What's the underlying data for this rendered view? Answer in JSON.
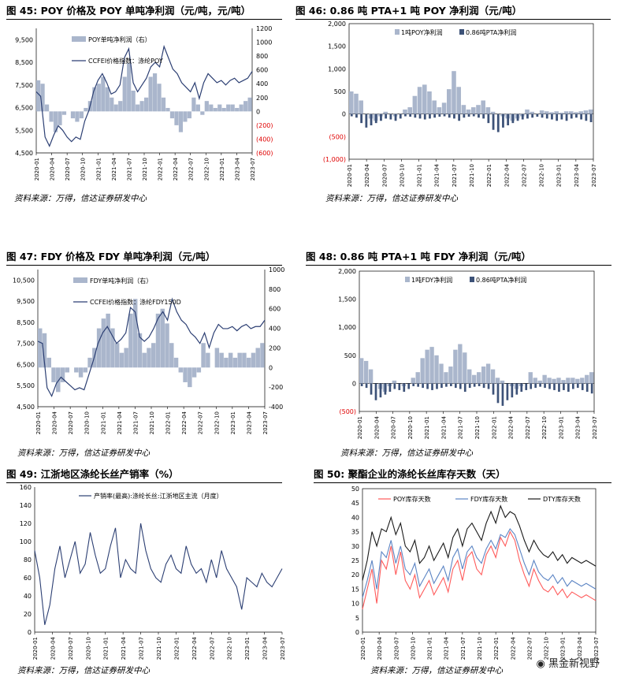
{
  "figures": [
    {
      "title": "图 45:  POY 价格及 POY 单吨净利润（元/吨，元/吨）",
      "source": "资料来源：万得，信达证券研发中心",
      "chart_data": {
        "type": "bar+line",
        "legend": [
          "POY单吨净利润（右）",
          "CCFEI价格指数：涤纶POY"
        ],
        "left_ticks": [
          "9,500",
          "8,500",
          "7,500",
          "6,500",
          "5,500",
          "4,500"
        ],
        "right_ticks": [
          "1200",
          "1000",
          "800",
          "600",
          "400",
          "200",
          "0",
          "(200)",
          "(400)",
          "(600)"
        ],
        "x_ticks": [
          "2020-01",
          "2020-04",
          "2020-07",
          "2020-10",
          "2021-01",
          "2021-04",
          "2021-07",
          "2021-10",
          "2022-01",
          "2022-04",
          "2022-07",
          "2022-10",
          "2023-01",
          "2023-04",
          "2023-07"
        ],
        "ylim_left": [
          4500,
          10000
        ],
        "ylim_right": [
          -600,
          1200
        ],
        "line_values": [
          7200,
          7000,
          5200,
          4800,
          5300,
          5700,
          5500,
          5200,
          5000,
          5200,
          5100,
          5900,
          6400,
          7200,
          7700,
          8000,
          7600,
          7100,
          7200,
          7500,
          8700,
          9100,
          7600,
          7200,
          7500,
          7800,
          8300,
          8500,
          8300,
          9200,
          8700,
          8200,
          8000,
          7600,
          7400,
          7200,
          7600,
          6900,
          7600,
          8000,
          7800,
          7600,
          7700,
          7500,
          7700,
          7800,
          7600,
          7700,
          7800,
          8100
        ],
        "bar_values": [
          450,
          400,
          100,
          -150,
          -300,
          -200,
          -50,
          0,
          -100,
          -150,
          -100,
          50,
          150,
          350,
          400,
          500,
          350,
          200,
          100,
          150,
          500,
          700,
          300,
          100,
          150,
          200,
          500,
          550,
          400,
          200,
          50,
          -100,
          -200,
          -300,
          -150,
          -100,
          200,
          100,
          -50,
          150,
          100,
          50,
          100,
          50,
          100,
          100,
          50,
          100,
          150,
          200
        ]
      }
    },
    {
      "title": "图 46:  0.86 吨 PTA+1 吨 POY 净利润（元/吨）",
      "source": "资料来源：万得，信达证券研发中心",
      "chart_data": {
        "type": "bar",
        "legend": [
          "1吨POY净利润",
          "0.86吨PTA净利润"
        ],
        "y_ticks": [
          "2,000",
          "1,500",
          "1,000",
          "500",
          "0",
          "(500)",
          "(1,000)"
        ],
        "ylim": [
          -1000,
          2000
        ],
        "x_ticks": [
          "2020-01",
          "2020-04",
          "2020-07",
          "2020-10",
          "2021-01",
          "2021-04",
          "2021-07",
          "2021-10",
          "2022-01",
          "2022-04",
          "2022-07",
          "2022-10",
          "2023-01",
          "2023-04",
          "2023-07"
        ],
        "series_1": [
          500,
          450,
          300,
          0,
          -100,
          -150,
          -50,
          50,
          0,
          -50,
          0,
          100,
          150,
          400,
          600,
          650,
          500,
          300,
          150,
          250,
          550,
          950,
          600,
          200,
          100,
          150,
          200,
          300,
          150,
          50,
          0,
          -50,
          -100,
          -150,
          -100,
          -50,
          100,
          50,
          0,
          80,
          60,
          40,
          60,
          30,
          60,
          60,
          40,
          60,
          80,
          100
        ],
        "series_2": [
          -50,
          -80,
          -200,
          -300,
          -250,
          -200,
          -150,
          -100,
          -120,
          -150,
          -100,
          -50,
          -60,
          -80,
          -100,
          -120,
          -100,
          -80,
          -60,
          -50,
          -80,
          -100,
          -150,
          -80,
          -60,
          -50,
          -80,
          -100,
          -200,
          -350,
          -400,
          -300,
          -250,
          -200,
          -150,
          -120,
          -100,
          -80,
          -60,
          -80,
          -100,
          -120,
          -150,
          -120,
          -150,
          -100,
          -80,
          -120,
          -150,
          -180
        ]
      }
    },
    {
      "title": "图 47:  FDY 价格及 FDY 单吨净利润（元/吨）",
      "source": "资料来源：万得，信达证券研发中心",
      "chart_data": {
        "type": "bar+line",
        "legend": [
          "FDY单吨净利润（右）",
          "CCFEI价格指数：涤纶FDY150D"
        ],
        "left_ticks": [
          "10,500",
          "9,500",
          "8,500",
          "7,500",
          "6,500",
          "5,500",
          "4,500"
        ],
        "right_ticks": [
          "1000",
          "800",
          "600",
          "400",
          "200",
          "0",
          "-200",
          "-400"
        ],
        "ylim_left": [
          4500,
          11000
        ],
        "ylim_right": [
          -400,
          1000
        ],
        "x_ticks": [
          "2020-01",
          "2020-04",
          "2020-07",
          "2020-10",
          "2021-01",
          "2021-04",
          "2021-07",
          "2021-10",
          "2022-01",
          "2022-04",
          "2022-07",
          "2022-10",
          "2023-01",
          "2023-04",
          "2023-07"
        ],
        "line_values": [
          7600,
          7500,
          5400,
          5000,
          5600,
          5900,
          5700,
          5500,
          5300,
          5400,
          5300,
          6000,
          6700,
          7500,
          8000,
          8300,
          7900,
          7500,
          7700,
          8000,
          9200,
          9000,
          7800,
          7600,
          7800,
          8200,
          8700,
          9000,
          8600,
          9600,
          9000,
          8600,
          8400,
          8000,
          7800,
          7500,
          8000,
          7300,
          8000,
          8400,
          8200,
          8200,
          8300,
          8100,
          8300,
          8400,
          8200,
          8300,
          8300,
          8600
        ],
        "bar_values": [
          400,
          350,
          100,
          -150,
          -250,
          -150,
          -50,
          0,
          -50,
          -100,
          -50,
          100,
          200,
          400,
          500,
          550,
          400,
          250,
          150,
          200,
          550,
          700,
          350,
          150,
          200,
          250,
          550,
          600,
          450,
          250,
          100,
          -50,
          -150,
          -200,
          -100,
          -50,
          250,
          150,
          0,
          200,
          150,
          100,
          150,
          100,
          150,
          150,
          100,
          150,
          200,
          250
        ]
      }
    },
    {
      "title": "图 48:  0.86 吨 PTA+1 吨 FDY 净利润（元/吨）",
      "source": "资料来源：万得，信达证券研发中心",
      "chart_data": {
        "type": "bar",
        "legend": [
          "1吨FDY净利润",
          "0.86吨PTA净利润"
        ],
        "y_ticks": [
          "2,000",
          "1,500",
          "1,000",
          "500",
          "0",
          "(500)"
        ],
        "ylim": [
          -500,
          2000
        ],
        "x_ticks": [
          "2020-01",
          "2020-04",
          "2020-07",
          "2020-10",
          "2021-01",
          "2021-04",
          "2021-07",
          "2021-10",
          "2022-01",
          "2022-04",
          "2022-07",
          "2022-10",
          "2023-01",
          "2023-04",
          "2023-07"
        ],
        "series_1": [
          450,
          400,
          250,
          0,
          -100,
          -150,
          -50,
          50,
          0,
          -50,
          0,
          100,
          200,
          450,
          600,
          650,
          500,
          350,
          200,
          300,
          600,
          700,
          550,
          250,
          150,
          200,
          300,
          350,
          250,
          100,
          50,
          0,
          -50,
          -100,
          -50,
          0,
          200,
          100,
          50,
          150,
          100,
          80,
          100,
          60,
          100,
          100,
          80,
          100,
          150,
          200
        ],
        "series_2": [
          -50,
          -80,
          -200,
          -300,
          -250,
          -200,
          -150,
          -100,
          -120,
          -150,
          -100,
          -50,
          -60,
          -80,
          -100,
          -120,
          -100,
          -80,
          -60,
          -50,
          -80,
          -100,
          -150,
          -80,
          -60,
          -50,
          -80,
          -100,
          -200,
          -350,
          -400,
          -300,
          -250,
          -200,
          -150,
          -120,
          -100,
          -80,
          -60,
          -80,
          -100,
          -120,
          -150,
          -120,
          -150,
          -100,
          -80,
          -120,
          -150,
          -180
        ]
      }
    },
    {
      "title": "图 49:  江浙地区涤纶长丝产销率（%）",
      "source": "资料来源：万得，信达证券研发中心",
      "chart_data": {
        "type": "line",
        "legend": [
          "产销率(最高):涤纶长丝:江浙地区主流（月度）"
        ],
        "y_ticks": [
          "160",
          "140",
          "120",
          "100",
          "80",
          "60",
          "40",
          "20",
          "0"
        ],
        "ylim": [
          0,
          160
        ],
        "x_ticks": [
          "2020-01",
          "2020-04",
          "2020-07",
          "2020-10",
          "2021-01",
          "2021-04",
          "2021-07",
          "2021-10",
          "2022-01",
          "2022-04",
          "2022-07",
          "2022-10",
          "2023-01",
          "2023-04",
          "2023-07"
        ],
        "values": [
          90,
          60,
          8,
          30,
          70,
          95,
          60,
          80,
          100,
          65,
          75,
          110,
          85,
          65,
          70,
          95,
          115,
          60,
          80,
          70,
          65,
          120,
          90,
          70,
          60,
          55,
          75,
          85,
          70,
          65,
          95,
          75,
          65,
          70,
          55,
          80,
          60,
          90,
          70,
          60,
          50,
          25,
          60,
          55,
          50,
          65,
          55,
          50,
          60,
          70
        ]
      }
    },
    {
      "title": "图 50:  聚酯企业的涤纶长丝库存天数（天）",
      "source": "资料来源：万得，信达证券研发中心",
      "chart_data": {
        "type": "line",
        "series": [
          {
            "name": "POY库存天数",
            "values": [
              8,
              15,
              22,
              10,
              25,
              22,
              30,
              20,
              28,
              18,
              15,
              20,
              12,
              15,
              18,
              13,
              16,
              19,
              14,
              22,
              25,
              18,
              26,
              28,
              22,
              20,
              27,
              30,
              26,
              33,
              30,
              35,
              32,
              25,
              20,
              16,
              22,
              18,
              15,
              14,
              16,
              13,
              15,
              12,
              14,
              13,
              12,
              13,
              12,
              11
            ]
          },
          {
            "name": "FDY库存天数",
            "values": [
              12,
              18,
              25,
              15,
              28,
              26,
              32,
              24,
              30,
              22,
              20,
              24,
              16,
              19,
              22,
              17,
              20,
              23,
              18,
              26,
              29,
              22,
              28,
              30,
              26,
              24,
              29,
              32,
              29,
              34,
              33,
              36,
              34,
              29,
              24,
              20,
              25,
              21,
              19,
              18,
              20,
              17,
              19,
              16,
              18,
              17,
              16,
              17,
              16,
              15
            ]
          },
          {
            "name": "DTY库存天数",
            "values": [
              18,
              25,
              35,
              30,
              36,
              35,
              40,
              34,
              38,
              30,
              28,
              32,
              24,
              26,
              30,
              25,
              28,
              31,
              26,
              33,
              36,
              30,
              36,
              38,
              35,
              32,
              38,
              42,
              38,
              44,
              40,
              42,
              41,
              37,
              32,
              28,
              32,
              29,
              27,
              26,
              28,
              25,
              27,
              24,
              26,
              25,
              24,
              25,
              24,
              23
            ]
          }
        ],
        "series_colors": [
          "#ff5a5a",
          "#5b84c4",
          "#1a1a1a"
        ],
        "y_ticks": [
          "50",
          "45",
          "40",
          "35",
          "30",
          "25",
          "20",
          "15",
          "10",
          "5",
          "0"
        ],
        "ylim": [
          0,
          50
        ],
        "x_ticks": [
          "2020-01",
          "2020-04",
          "2020-07",
          "2020-10",
          "2021-01",
          "2021-04",
          "2021-07",
          "2021-10",
          "2022-01",
          "2022-04",
          "2022-07",
          "2022-10",
          "2023-01",
          "2023-04",
          "2023-07"
        ]
      }
    }
  ],
  "colors": {
    "bar": "#aab6cc",
    "bar_dark": "#3d5278",
    "line": "#2c3f73",
    "negative_label": "#e00000"
  },
  "watermark": "黑金新视野"
}
